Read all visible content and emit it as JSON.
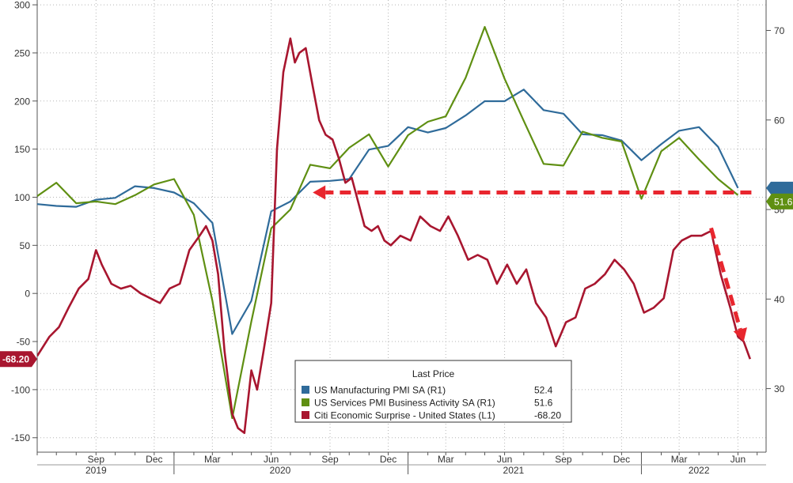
{
  "chart_data": {
    "type": "line",
    "title": "",
    "y_left": {
      "range": [
        -165,
        305
      ],
      "ticks": [
        300,
        250,
        200,
        150,
        100,
        50,
        0,
        -50,
        -100,
        -150
      ]
    },
    "y_right": {
      "range": [
        22.9,
        73.4
      ],
      "ticks": [
        70,
        60,
        50,
        40,
        30
      ]
    },
    "x_range": [
      "2019-06-01",
      "2022-07-15"
    ],
    "x_month_ticks": [
      {
        "date": "2019-09-01",
        "label": "Sep"
      },
      {
        "date": "2019-12-01",
        "label": "Dec"
      },
      {
        "date": "2020-03-01",
        "label": "Mar"
      },
      {
        "date": "2020-06-01",
        "label": "Jun"
      },
      {
        "date": "2020-09-01",
        "label": "Sep"
      },
      {
        "date": "2020-12-01",
        "label": "Dec"
      },
      {
        "date": "2021-03-01",
        "label": "Mar"
      },
      {
        "date": "2021-06-01",
        "label": "Jun"
      },
      {
        "date": "2021-09-01",
        "label": "Sep"
      },
      {
        "date": "2021-12-01",
        "label": "Dec"
      },
      {
        "date": "2022-03-01",
        "label": "Mar"
      },
      {
        "date": "2022-06-01",
        "label": "Jun"
      }
    ],
    "x_year_labels": [
      {
        "date": "2019-09-01",
        "label": "2019"
      },
      {
        "date": "2020-06-15",
        "label": "2020"
      },
      {
        "date": "2021-06-15",
        "label": "2021"
      },
      {
        "date": "2022-04-01",
        "label": "2022"
      }
    ],
    "year_boundaries": [
      "2020-01-01",
      "2021-01-01",
      "2022-01-01"
    ],
    "grid": true,
    "legend": {
      "title": "Last Price",
      "placement": "bottom-center",
      "entries": [
        {
          "name": "US Manufacturing PMI SA  (R1)",
          "value": "52.4",
          "color": "#2f6b9a"
        },
        {
          "name": "US Services PMI Business Activity SA  (R1)",
          "value": "51.6",
          "color": "#5f8f12"
        },
        {
          "name": "Citi Economic Surprise - United States  (L1)",
          "value": "-68.20",
          "color": "#a8162f"
        }
      ]
    },
    "callouts": {
      "left_value": "-68.20",
      "right_value": "51.6"
    },
    "series": [
      {
        "name": "US Manufacturing PMI SA",
        "axis": "right",
        "color": "#2f6b9a",
        "x": [
          "2019-06-01",
          "2019-07-01",
          "2019-08-01",
          "2019-09-01",
          "2019-10-01",
          "2019-11-01",
          "2019-12-01",
          "2020-01-01",
          "2020-02-01",
          "2020-03-01",
          "2020-04-01",
          "2020-05-01",
          "2020-06-01",
          "2020-07-01",
          "2020-08-01",
          "2020-09-01",
          "2020-10-01",
          "2020-11-01",
          "2020-12-01",
          "2021-01-01",
          "2021-02-01",
          "2021-03-01",
          "2021-04-01",
          "2021-05-01",
          "2021-06-01",
          "2021-07-01",
          "2021-08-01",
          "2021-09-01",
          "2021-10-01",
          "2021-11-01",
          "2021-12-01",
          "2022-01-01",
          "2022-02-01",
          "2022-03-01",
          "2022-04-01",
          "2022-05-01",
          "2022-06-01"
        ],
        "values": [
          50.6,
          50.4,
          50.3,
          51.1,
          51.3,
          52.6,
          52.4,
          51.9,
          50.7,
          48.5,
          36.1,
          39.8,
          49.8,
          50.9,
          53.1,
          53.2,
          53.4,
          56.7,
          57.1,
          59.2,
          58.6,
          59.1,
          60.5,
          62.1,
          62.1,
          63.4,
          61.1,
          60.7,
          58.4,
          58.3,
          57.7,
          55.5,
          57.3,
          58.8,
          59.2,
          57.0,
          52.4
        ]
      },
      {
        "name": "US Services PMI Business Activity SA",
        "axis": "right",
        "color": "#5f8f12",
        "x": [
          "2019-06-01",
          "2019-07-01",
          "2019-08-01",
          "2019-09-01",
          "2019-10-01",
          "2019-11-01",
          "2019-12-01",
          "2020-01-01",
          "2020-02-01",
          "2020-03-01",
          "2020-04-01",
          "2020-05-01",
          "2020-06-01",
          "2020-07-01",
          "2020-08-01",
          "2020-09-01",
          "2020-10-01",
          "2020-11-01",
          "2020-12-01",
          "2021-01-01",
          "2021-02-01",
          "2021-03-01",
          "2021-04-01",
          "2021-05-01",
          "2021-06-01",
          "2021-07-01",
          "2021-08-01",
          "2021-09-01",
          "2021-10-01",
          "2021-11-01",
          "2021-12-01",
          "2022-01-01",
          "2022-02-01",
          "2022-03-01",
          "2022-04-01",
          "2022-05-01",
          "2022-06-01"
        ],
        "values": [
          51.5,
          53.0,
          50.7,
          50.9,
          50.6,
          51.6,
          52.8,
          53.4,
          49.4,
          39.8,
          26.7,
          37.5,
          47.9,
          50.0,
          55.0,
          54.6,
          56.9,
          58.4,
          54.8,
          58.3,
          59.8,
          60.4,
          64.7,
          70.4,
          64.6,
          59.9,
          55.1,
          54.9,
          58.7,
          58.0,
          57.6,
          51.2,
          56.5,
          58.0,
          55.6,
          53.4,
          51.6
        ]
      },
      {
        "name": "Citi Economic Surprise - United States",
        "axis": "left",
        "color": "#a8162f",
        "x": [
          "2019-06-01",
          "2019-06-20",
          "2019-07-05",
          "2019-07-20",
          "2019-08-05",
          "2019-08-20",
          "2019-09-01",
          "2019-09-10",
          "2019-09-25",
          "2019-10-10",
          "2019-10-25",
          "2019-11-10",
          "2019-11-25",
          "2019-12-10",
          "2019-12-25",
          "2020-01-10",
          "2020-01-25",
          "2020-02-10",
          "2020-02-20",
          "2020-03-01",
          "2020-03-10",
          "2020-03-20",
          "2020-04-01",
          "2020-04-10",
          "2020-04-20",
          "2020-05-01",
          "2020-05-10",
          "2020-05-20",
          "2020-06-01",
          "2020-06-10",
          "2020-06-20",
          "2020-07-01",
          "2020-07-08",
          "2020-07-15",
          "2020-07-25",
          "2020-08-05",
          "2020-08-15",
          "2020-08-25",
          "2020-09-05",
          "2020-09-15",
          "2020-09-25",
          "2020-10-05",
          "2020-10-15",
          "2020-10-25",
          "2020-11-05",
          "2020-11-15",
          "2020-11-25",
          "2020-12-05",
          "2020-12-20",
          "2021-01-05",
          "2021-01-20",
          "2021-02-05",
          "2021-02-20",
          "2021-03-05",
          "2021-03-20",
          "2021-04-05",
          "2021-04-20",
          "2021-05-05",
          "2021-05-20",
          "2021-06-05",
          "2021-06-20",
          "2021-07-05",
          "2021-07-20",
          "2021-08-05",
          "2021-08-20",
          "2021-09-05",
          "2021-09-20",
          "2021-10-05",
          "2021-10-20",
          "2021-11-05",
          "2021-11-20",
          "2021-12-05",
          "2021-12-20",
          "2022-01-05",
          "2022-01-20",
          "2022-02-05",
          "2022-02-20",
          "2022-03-05",
          "2022-03-20",
          "2022-04-05",
          "2022-04-20",
          "2022-05-05",
          "2022-05-20",
          "2022-06-01",
          "2022-06-10",
          "2022-06-20"
        ],
        "values": [
          -65,
          -45,
          -35,
          -15,
          5,
          15,
          45,
          30,
          10,
          5,
          8,
          0,
          -5,
          -10,
          5,
          10,
          45,
          60,
          70,
          55,
          20,
          -60,
          -125,
          -140,
          -145,
          -80,
          -100,
          -60,
          -10,
          150,
          230,
          265,
          240,
          250,
          255,
          215,
          180,
          165,
          160,
          140,
          115,
          120,
          95,
          70,
          65,
          70,
          55,
          50,
          60,
          55,
          80,
          70,
          65,
          80,
          60,
          35,
          40,
          35,
          10,
          30,
          10,
          25,
          -10,
          -25,
          -55,
          -30,
          -25,
          5,
          10,
          20,
          35,
          25,
          10,
          -20,
          -15,
          -5,
          45,
          55,
          60,
          60,
          65,
          20,
          -15,
          -45,
          -50,
          -68.2
        ]
      }
    ],
    "annotations": [
      {
        "type": "dashed-arrow",
        "direction": "left",
        "from": {
          "date": "2022-06-22",
          "y_right": 51.9
        },
        "to": {
          "date": "2020-08-05",
          "y_right": 51.9
        },
        "color": "#e8262e"
      },
      {
        "type": "dashed-arrow",
        "direction": "down",
        "from": {
          "date": "2022-04-20",
          "y_left": 68
        },
        "to": {
          "date": "2022-06-10",
          "y_left": -50
        },
        "color": "#e8262e"
      }
    ]
  }
}
